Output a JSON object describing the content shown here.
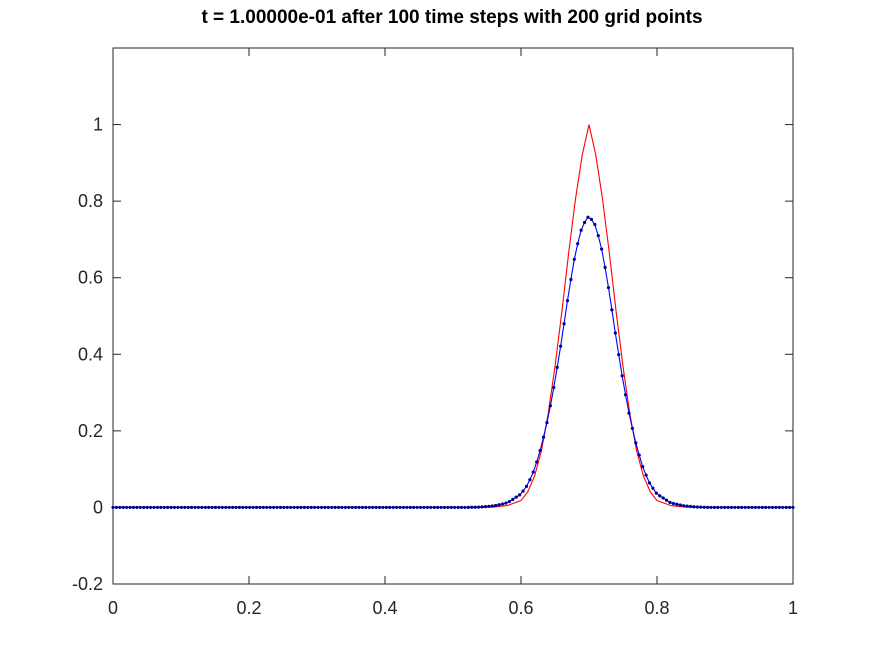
{
  "chart_data": {
    "type": "line",
    "title": "t = 1.00000e-01  after  100 time steps with   200 grid points",
    "xlabel": "",
    "ylabel": "",
    "xlim": [
      0,
      1
    ],
    "ylim": [
      -0.2,
      1.2
    ],
    "grid": false,
    "legend": "none",
    "x_ticks": [
      0,
      0.2,
      0.4,
      0.6,
      0.8,
      1
    ],
    "x_tick_labels": [
      "0",
      "0.2",
      "0.4",
      "0.6",
      "0.8",
      "1"
    ],
    "y_ticks": [
      -0.2,
      0,
      0.2,
      0.4,
      0.6,
      0.8,
      1
    ],
    "y_tick_labels": [
      "-0.2",
      "0",
      "0.2",
      "0.4",
      "0.6",
      "0.8",
      "1"
    ],
    "series": [
      {
        "color": "#ff0000",
        "style": "solid line",
        "x": [
          0.5,
          0.52,
          0.54,
          0.56,
          0.58,
          0.6,
          0.61,
          0.62,
          0.63,
          0.64,
          0.65,
          0.66,
          0.67,
          0.68,
          0.69,
          0.7,
          0.71,
          0.72,
          0.73,
          0.74,
          0.75,
          0.76,
          0.77,
          0.78,
          0.79,
          0.8,
          0.82,
          0.84,
          0.86,
          0.88,
          0.9
        ],
        "y": [
          0,
          0,
          0,
          0.001,
          0.005,
          0.018,
          0.041,
          0.082,
          0.148,
          0.245,
          0.368,
          0.51,
          0.663,
          0.804,
          0.92,
          1.0,
          0.92,
          0.804,
          0.663,
          0.51,
          0.368,
          0.245,
          0.148,
          0.082,
          0.041,
          0.018,
          0.005,
          0.001,
          0,
          0,
          0
        ]
      },
      {
        "color": "#0000ff",
        "style": "line with dot markers",
        "x": [
          0.5,
          0.52,
          0.54,
          0.56,
          0.58,
          0.6,
          0.61,
          0.62,
          0.63,
          0.64,
          0.65,
          0.66,
          0.67,
          0.68,
          0.69,
          0.7,
          0.71,
          0.72,
          0.73,
          0.74,
          0.75,
          0.76,
          0.77,
          0.78,
          0.79,
          0.8,
          0.82,
          0.84,
          0.86,
          0.88,
          0.9
        ],
        "y": [
          0,
          0,
          0.001,
          0.004,
          0.012,
          0.035,
          0.06,
          0.1,
          0.16,
          0.235,
          0.33,
          0.44,
          0.56,
          0.665,
          0.735,
          0.762,
          0.735,
          0.665,
          0.56,
          0.44,
          0.33,
          0.235,
          0.16,
          0.1,
          0.06,
          0.035,
          0.012,
          0.004,
          0.001,
          0,
          0
        ]
      }
    ]
  }
}
